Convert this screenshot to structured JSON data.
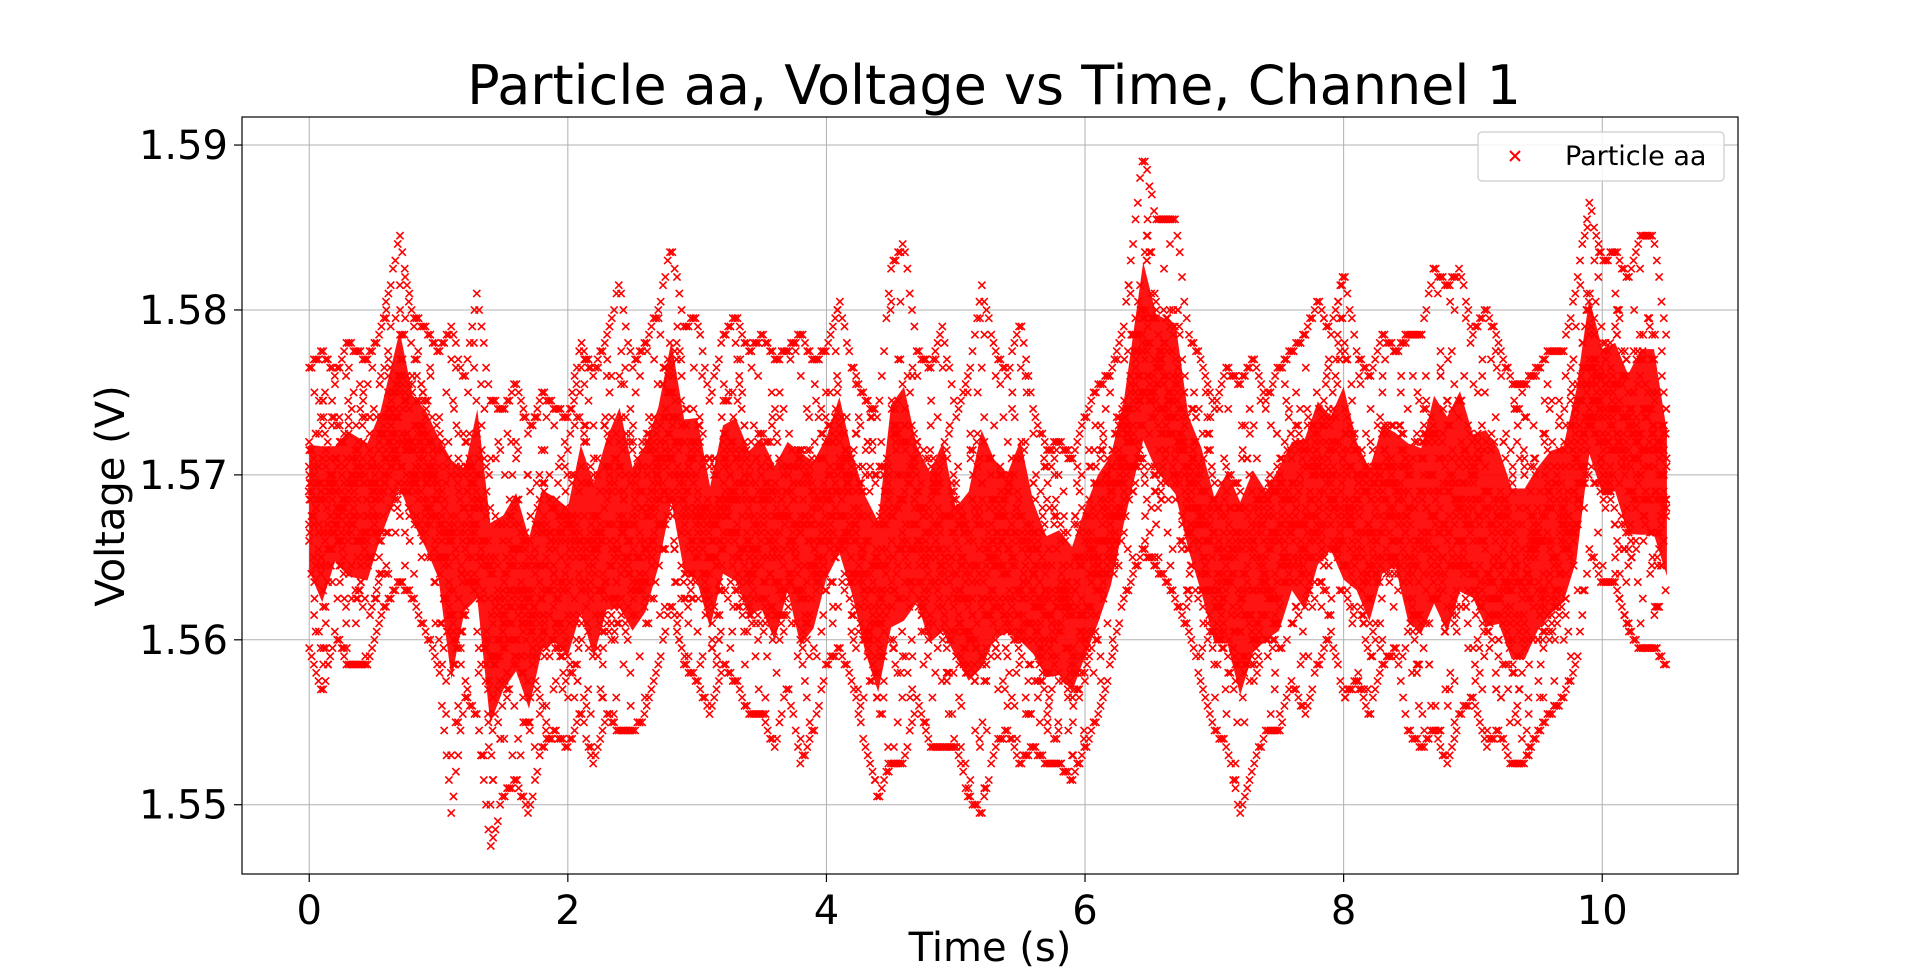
{
  "chart_data": {
    "type": "scatter",
    "title": "Particle aa, Voltage vs Time, Channel 1",
    "xlabel": "Time (s)",
    "ylabel": "Voltage (V)",
    "xlim": [
      -0.52,
      11.05
    ],
    "ylim": [
      1.5458,
      1.5917
    ],
    "xticks": [
      0,
      2,
      4,
      6,
      8,
      10
    ],
    "xtick_labels": [
      "0",
      "2",
      "4",
      "6",
      "8",
      "10"
    ],
    "yticks": [
      1.55,
      1.56,
      1.57,
      1.58,
      1.59
    ],
    "ytick_labels": [
      "1.55",
      "1.56",
      "1.57",
      "1.58",
      "1.59"
    ],
    "grid": true,
    "legend": {
      "position": "top-right",
      "entries": [
        "Particle aa"
      ]
    },
    "marker": "x",
    "color": "#ff0000",
    "x_range": [
      0.0,
      10.5
    ],
    "y_quantization": 0.0005,
    "series": [
      {
        "name": "Particle aa",
        "envelope": {
          "t": [
            0.0,
            0.1,
            0.2,
            0.3,
            0.45,
            0.55,
            0.7,
            0.8,
            0.9,
            1.0,
            1.1,
            1.2,
            1.3,
            1.4,
            1.5,
            1.6,
            1.7,
            1.8,
            1.9,
            2.0,
            2.1,
            2.2,
            2.3,
            2.4,
            2.5,
            2.6,
            2.7,
            2.8,
            2.9,
            3.0,
            3.1,
            3.2,
            3.3,
            3.4,
            3.5,
            3.6,
            3.7,
            3.8,
            3.9,
            4.0,
            4.1,
            4.2,
            4.3,
            4.4,
            4.5,
            4.6,
            4.7,
            4.8,
            4.9,
            5.0,
            5.1,
            5.2,
            5.3,
            5.4,
            5.5,
            5.6,
            5.7,
            5.8,
            5.9,
            6.0,
            6.1,
            6.2,
            6.3,
            6.45,
            6.55,
            6.7,
            6.8,
            6.9,
            7.0,
            7.1,
            7.2,
            7.3,
            7.4,
            7.5,
            7.6,
            7.7,
            7.8,
            7.9,
            8.0,
            8.1,
            8.2,
            8.3,
            8.4,
            8.5,
            8.6,
            8.7,
            8.8,
            8.9,
            9.0,
            9.1,
            9.2,
            9.3,
            9.4,
            9.5,
            9.6,
            9.7,
            9.8,
            9.9,
            10.0,
            10.1,
            10.2,
            10.3,
            10.4,
            10.5
          ],
          "upper": [
            1.5765,
            1.5775,
            1.576,
            1.578,
            1.577,
            1.5785,
            1.5845,
            1.5795,
            1.579,
            1.5775,
            1.579,
            1.5755,
            1.581,
            1.5745,
            1.574,
            1.5755,
            1.5725,
            1.575,
            1.574,
            1.5735,
            1.578,
            1.576,
            1.5785,
            1.5815,
            1.5765,
            1.578,
            1.58,
            1.584,
            1.579,
            1.5795,
            1.5745,
            1.5785,
            1.5795,
            1.5775,
            1.5785,
            1.577,
            1.5775,
            1.5785,
            1.577,
            1.5775,
            1.5805,
            1.5765,
            1.5745,
            1.5735,
            1.5825,
            1.584,
            1.5775,
            1.5765,
            1.579,
            1.5735,
            1.576,
            1.5815,
            1.5775,
            1.576,
            1.5795,
            1.574,
            1.5715,
            1.572,
            1.571,
            1.5735,
            1.5755,
            1.576,
            1.579,
            1.5895,
            1.5855,
            1.5855,
            1.5785,
            1.577,
            1.574,
            1.5765,
            1.5755,
            1.577,
            1.5745,
            1.5765,
            1.5775,
            1.5785,
            1.5805,
            1.5785,
            1.5825,
            1.5775,
            1.576,
            1.5785,
            1.5775,
            1.5785,
            1.5785,
            1.5825,
            1.5815,
            1.5825,
            1.5785,
            1.58,
            1.578,
            1.5755,
            1.5755,
            1.5765,
            1.5775,
            1.5775,
            1.5815,
            1.5865,
            1.583,
            1.5835,
            1.582,
            1.5845,
            1.5845,
            1.578
          ],
          "lower": [
            1.5595,
            1.5565,
            1.5605,
            1.5585,
            1.5585,
            1.5615,
            1.5635,
            1.5625,
            1.5605,
            1.5585,
            1.5495,
            1.5565,
            1.5555,
            1.5475,
            1.5505,
            1.5515,
            1.5495,
            1.5535,
            1.5545,
            1.5535,
            1.5555,
            1.5525,
            1.5555,
            1.5545,
            1.5545,
            1.5555,
            1.5585,
            1.5625,
            1.5585,
            1.5575,
            1.5555,
            1.5585,
            1.5575,
            1.5555,
            1.5555,
            1.5535,
            1.5575,
            1.5525,
            1.5545,
            1.5585,
            1.5595,
            1.5575,
            1.5535,
            1.5505,
            1.5525,
            1.5525,
            1.5565,
            1.5535,
            1.5535,
            1.5535,
            1.5505,
            1.5495,
            1.5535,
            1.5545,
            1.5525,
            1.5535,
            1.5525,
            1.5525,
            1.5515,
            1.5535,
            1.5555,
            1.5585,
            1.5625,
            1.5655,
            1.5645,
            1.5625,
            1.5605,
            1.5575,
            1.5545,
            1.5535,
            1.5495,
            1.5525,
            1.5545,
            1.5545,
            1.5575,
            1.5555,
            1.5585,
            1.5605,
            1.5565,
            1.5575,
            1.5555,
            1.5585,
            1.5595,
            1.5545,
            1.5535,
            1.5545,
            1.5525,
            1.5555,
            1.5565,
            1.5535,
            1.5545,
            1.5525,
            1.5525,
            1.5545,
            1.5555,
            1.5565,
            1.5585,
            1.5655,
            1.5635,
            1.5635,
            1.5605,
            1.5595,
            1.5595,
            1.5585
          ]
        }
      }
    ]
  }
}
